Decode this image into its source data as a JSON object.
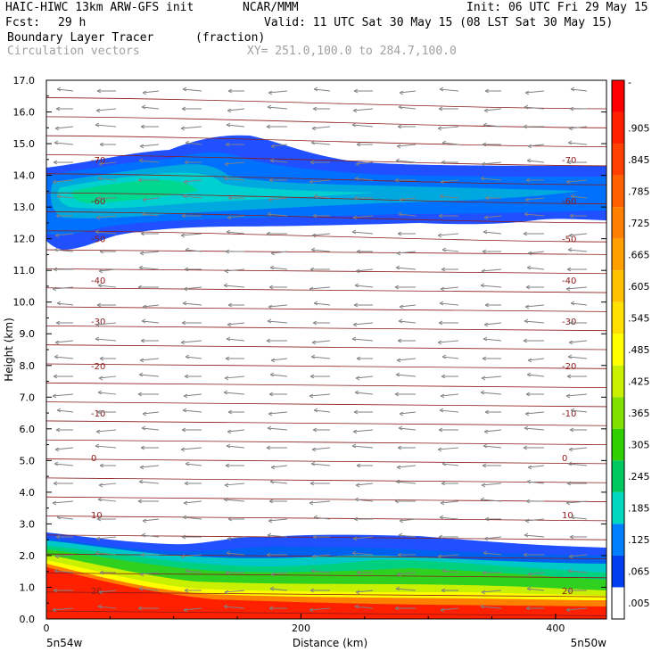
{
  "header": {
    "model": "HAIC-HIWC 13km ARW-GFS init",
    "center": "NCAR/MMM",
    "init": "Init: 06 UTC Fri 29 May 15",
    "fcst_label": "Fcst:",
    "fcst_value": "29 h",
    "valid": "Valid: 11 UTC Sat 30 May 15 (08 LST Sat 30 May 15)",
    "field": "Boundary Layer Tracer",
    "units": "(fraction)",
    "vectors": "Circulation vectors",
    "xy": "XY= 251.0,100.0 to 284.7,100.0"
  },
  "colors": {
    "contour_line": "#8b1a1a",
    "vector": "#808080"
  },
  "chart_data": {
    "type": "heatmap",
    "ylabel": "Height (km)",
    "xlabel": "Distance (km)",
    "xlim": [
      0,
      440
    ],
    "ylim": [
      0,
      17
    ],
    "yticks": [
      "0.0",
      "1.0",
      "2.0",
      "3.0",
      "4.0",
      "5.0",
      "6.0",
      "7.0",
      "8.0",
      "9.0",
      "10.0",
      "11.0",
      "12.0",
      "13.0",
      "14.0",
      "15.0",
      "16.0",
      "17.0"
    ],
    "xticks": [
      "0",
      "200",
      "400"
    ],
    "x_end_labels": [
      "5n54w",
      "5n50w"
    ],
    "colorbar": {
      "labels": [
        "-",
        ".905",
        ".845",
        ".785",
        ".725",
        ".665",
        ".605",
        ".545",
        ".485",
        ".425",
        ".365",
        ".305",
        ".245",
        ".185",
        ".125",
        ".065",
        ".005"
      ],
      "colors": [
        "#ff0000",
        "#ff2000",
        "#ff4000",
        "#ff6000",
        "#ff8000",
        "#ffa000",
        "#ffc000",
        "#ffe000",
        "#ffff00",
        "#c8f000",
        "#80e000",
        "#30d000",
        "#00c860",
        "#00d8c0",
        "#0080ff",
        "#0040f0",
        "#ffffff"
      ]
    },
    "series": [
      {
        "name": "0.005 contour",
        "color": "#2050ff"
      },
      {
        "name": "0.125 contour",
        "color": "#00c8c8"
      },
      {
        "name": "0.305 contour",
        "color": "#20d020"
      },
      {
        "name": "0.605 contour",
        "color": "#ff8000"
      }
    ],
    "temperature_contours": [
      {
        "label": "-70",
        "height": 14.5
      },
      {
        "label": "-60",
        "height": 13.2
      },
      {
        "label": "-50",
        "height": 12.0
      },
      {
        "label": "-40",
        "height": 10.7
      },
      {
        "label": "-30",
        "height": 9.4
      },
      {
        "label": "-20",
        "height": 8.0
      },
      {
        "label": "-10",
        "height": 6.5
      },
      {
        "label": "0",
        "height": 5.1
      },
      {
        "label": "10",
        "height": 3.3
      },
      {
        "label": "20",
        "height": 0.9
      }
    ]
  }
}
